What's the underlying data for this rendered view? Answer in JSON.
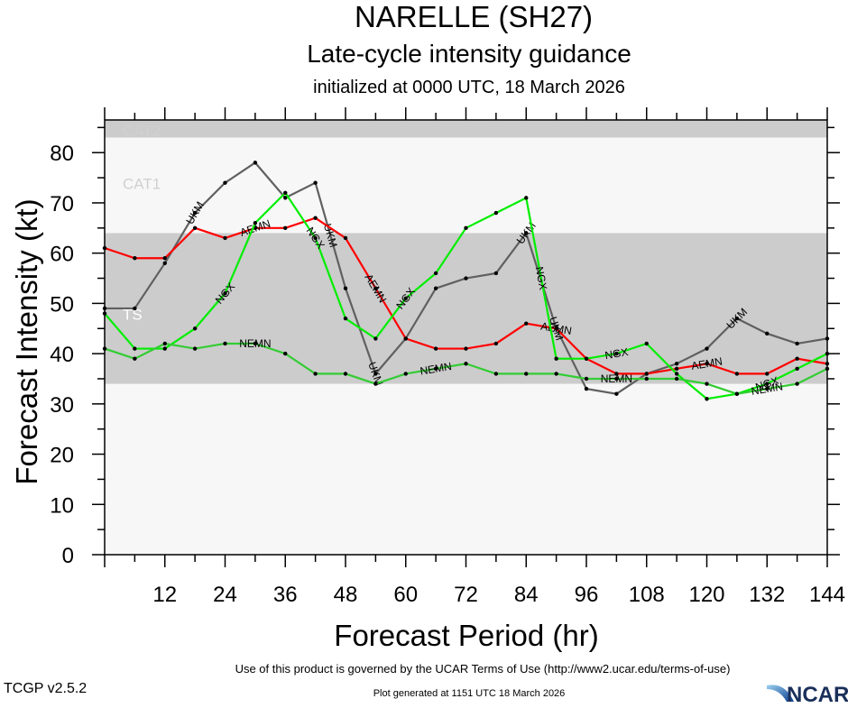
{
  "header": {
    "storm": "NARELLE (SH27)",
    "subtitle": "Late-cycle intensity guidance",
    "init": "initialized at 0000 UTC, 18 March 2026"
  },
  "footer": {
    "terms": "Use of this product is governed by the UCAR Terms of Use (http://www2.ucar.edu/terms-of-use)",
    "generated": "Plot generated at 1151 UTC   18 March 2026",
    "version": "TCGP v2.5.2",
    "logo": "NCAR"
  },
  "chart_data": {
    "type": "line",
    "title": "NARELLE (SH27)",
    "subtitle": "Late-cycle intensity guidance",
    "xlabel": "Forecast Period (hr)",
    "ylabel": "Forecast Intensity (kt)",
    "xlim": [
      0,
      144
    ],
    "ylim": [
      0,
      86.5
    ],
    "xticks": [
      12,
      24,
      36,
      48,
      60,
      72,
      84,
      96,
      108,
      120,
      132,
      144
    ],
    "yticks": [
      0,
      10,
      20,
      30,
      40,
      50,
      60,
      70,
      80
    ],
    "bands": [
      {
        "label": "TS",
        "from": 34,
        "to": 64,
        "color": "#cccccc",
        "label_at": 48
      },
      {
        "label": "CAT1",
        "from": 64,
        "to": 83,
        "color": "#f7f7f7",
        "label_at": 74
      },
      {
        "label": "CAT2",
        "from": 83,
        "to": 86.5,
        "color": "#cccccc",
        "label_at": 84.5
      }
    ],
    "x": [
      0,
      6,
      12,
      18,
      24,
      30,
      36,
      42,
      48,
      54,
      60,
      66,
      72,
      78,
      84,
      90,
      96,
      102,
      108,
      114,
      120,
      126,
      132,
      138,
      144
    ],
    "series": [
      {
        "name": "UKM",
        "color": "#606060",
        "values": [
          49,
          49,
          58,
          68,
          74,
          78,
          71,
          74,
          53,
          36,
          43,
          53,
          55,
          56,
          64,
          45,
          33,
          32,
          36,
          38,
          41,
          47,
          44,
          42,
          43
        ],
        "labels_at": [
          18,
          45,
          54,
          84,
          90,
          126
        ]
      },
      {
        "name": "AEMN",
        "color": "#ff0000",
        "values": [
          61,
          59,
          59,
          65,
          63,
          65,
          65,
          67,
          63,
          53,
          43,
          41,
          41,
          42,
          46,
          45,
          39,
          36,
          36,
          37,
          38,
          36,
          36,
          39,
          38
        ],
        "labels_at": [
          30,
          54,
          90,
          120
        ]
      },
      {
        "name": "NGX",
        "color": "#00ee00",
        "values": [
          48,
          41,
          41,
          45,
          52,
          66,
          72,
          63,
          47,
          43,
          51,
          56,
          65,
          68,
          71,
          39,
          39,
          40,
          42,
          36,
          31,
          32,
          34,
          37,
          40
        ],
        "labels_at": [
          24,
          42,
          60,
          87,
          102,
          132
        ]
      },
      {
        "name": "NEMN",
        "color": "#33cc33",
        "values": [
          41,
          39,
          42,
          41,
          42,
          42,
          40,
          36,
          36,
          34,
          36,
          37,
          38,
          36,
          36,
          36,
          35,
          35,
          35,
          35,
          34,
          32,
          33,
          34,
          37
        ],
        "labels_at": [
          30,
          66,
          102,
          132
        ]
      }
    ]
  }
}
